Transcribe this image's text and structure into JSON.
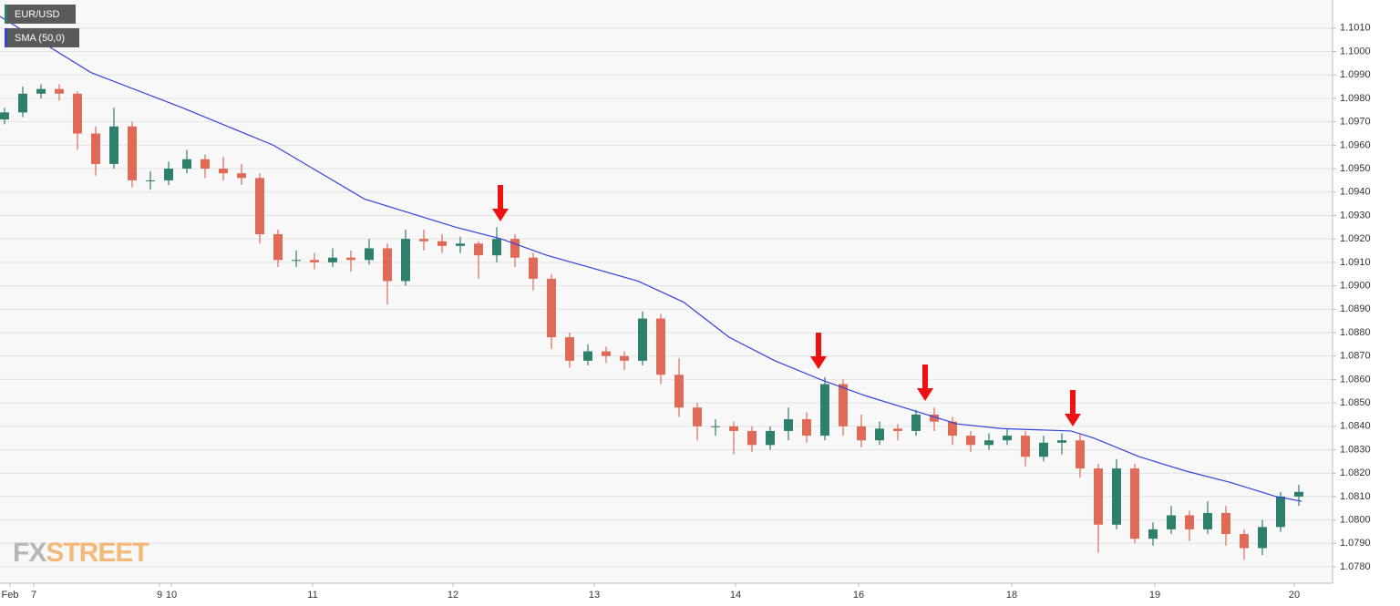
{
  "chart_data": {
    "type": "candlestick",
    "watermark": [
      "FX",
      "STREET"
    ],
    "grid": true,
    "xlim": [
      -0.25,
      72.85
    ],
    "ylim": [
      1.0773,
      1.1022
    ],
    "xticks": [
      {
        "value": 0.3,
        "label": "Feb"
      },
      {
        "value": 1.6,
        "label": "7"
      },
      {
        "value": 8.5,
        "label": "9"
      },
      {
        "value": 9.15,
        "label": "10"
      },
      {
        "value": 16.9,
        "label": "11"
      },
      {
        "value": 24.6,
        "label": "12"
      },
      {
        "value": 32.35,
        "label": "13"
      },
      {
        "value": 40.1,
        "label": "14"
      },
      {
        "value": 46.85,
        "label": "16"
      },
      {
        "value": 55.25,
        "label": "18"
      },
      {
        "value": 63.1,
        "label": "19"
      },
      {
        "value": 70.75,
        "label": "20"
      }
    ],
    "yticks": [
      {
        "value": 1.078,
        "label": "1.0780"
      },
      {
        "value": 1.079,
        "label": "1.0790"
      },
      {
        "value": 1.08,
        "label": "1.0800"
      },
      {
        "value": 1.081,
        "label": "1.0810"
      },
      {
        "value": 1.082,
        "label": "1.0820"
      },
      {
        "value": 1.083,
        "label": "1.0830"
      },
      {
        "value": 1.084,
        "label": "1.0840"
      },
      {
        "value": 1.085,
        "label": "1.0850"
      },
      {
        "value": 1.086,
        "label": "1.0860"
      },
      {
        "value": 1.087,
        "label": "1.0870"
      },
      {
        "value": 1.088,
        "label": "1.0880"
      },
      {
        "value": 1.089,
        "label": "1.0890"
      },
      {
        "value": 1.09,
        "label": "1.0900"
      },
      {
        "value": 1.091,
        "label": "1.0910"
      },
      {
        "value": 1.092,
        "label": "1.0920"
      },
      {
        "value": 1.093,
        "label": "1.0930"
      },
      {
        "value": 1.094,
        "label": "1.0940"
      },
      {
        "value": 1.095,
        "label": "1.0950"
      },
      {
        "value": 1.096,
        "label": "1.0960"
      },
      {
        "value": 1.097,
        "label": "1.0970"
      },
      {
        "value": 1.098,
        "label": "1.0980"
      },
      {
        "value": 1.099,
        "label": "1.0990"
      },
      {
        "value": 1.1,
        "label": "1.1000"
      },
      {
        "value": 1.101,
        "label": "1.1010"
      }
    ],
    "series": [
      {
        "name": "EUR/USD",
        "type": "candlestick",
        "up_color": "#2e7f6c",
        "down_color": "#de6b58",
        "x": [
          0,
          1,
          2,
          3,
          4,
          5,
          6,
          7,
          8,
          9,
          10,
          11,
          12,
          13,
          14,
          15,
          16,
          17,
          18,
          19,
          20,
          21,
          22,
          23,
          24,
          25,
          26,
          27,
          28,
          29,
          30,
          31,
          32,
          33,
          34,
          35,
          36,
          37,
          38,
          39,
          40,
          41,
          42,
          43,
          44,
          45,
          46,
          47,
          48,
          49,
          50,
          51,
          52,
          53,
          54,
          55,
          56,
          57,
          58,
          59,
          60,
          61,
          62,
          63,
          64,
          65,
          66,
          67,
          68,
          69,
          70,
          71
        ],
        "open": [
          1.0971,
          1.0974,
          1.0982,
          1.0984,
          1.0982,
          1.0965,
          1.0952,
          1.0968,
          1.0945,
          1.0945,
          1.095,
          1.0954,
          1.095,
          1.0948,
          1.0946,
          1.0922,
          1.0911,
          1.0911,
          1.091,
          1.0912,
          1.0911,
          1.0916,
          1.0902,
          1.092,
          1.0919,
          1.0917,
          1.0918,
          1.0913,
          1.092,
          1.0912,
          1.0903,
          1.0878,
          1.0868,
          1.0872,
          1.087,
          1.0868,
          1.0886,
          1.0862,
          1.0848,
          1.084,
          1.084,
          1.0838,
          1.0832,
          1.0838,
          1.0843,
          1.0836,
          1.0858,
          1.084,
          1.0834,
          1.0839,
          1.0838,
          1.0845,
          1.0842,
          1.0836,
          1.0832,
          1.0834,
          1.0836,
          1.0827,
          1.0833,
          1.0834,
          1.0822,
          1.0798,
          1.0822,
          1.0792,
          1.0796,
          1.0802,
          1.0796,
          1.0803,
          1.0794,
          1.0788,
          1.0797,
          1.081
        ],
        "high": [
          1.0976,
          1.0985,
          1.0986,
          1.0986,
          1.0983,
          1.0968,
          1.0976,
          1.097,
          1.0949,
          1.0953,
          1.0958,
          1.0956,
          1.0955,
          1.0952,
          1.0948,
          1.0924,
          1.0915,
          1.0914,
          1.0916,
          1.0915,
          1.092,
          1.0918,
          1.0924,
          1.0924,
          1.0922,
          1.0921,
          1.0919,
          1.0925,
          1.0922,
          1.0914,
          1.0905,
          1.088,
          1.0875,
          1.0874,
          1.0872,
          1.0889,
          1.0888,
          1.0869,
          1.085,
          1.0843,
          1.0842,
          1.084,
          1.084,
          1.0848,
          1.0846,
          1.0861,
          1.086,
          1.0845,
          1.0842,
          1.0841,
          1.0847,
          1.0848,
          1.0844,
          1.0838,
          1.0837,
          1.0839,
          1.0838,
          1.0836,
          1.0837,
          1.0837,
          1.0824,
          1.0826,
          1.0824,
          1.0799,
          1.0806,
          1.0804,
          1.0808,
          1.0806,
          1.0796,
          1.08,
          1.0812,
          1.0815
        ],
        "low": [
          1.0969,
          1.0972,
          1.098,
          1.0979,
          1.0958,
          1.0947,
          1.095,
          1.0942,
          1.0941,
          1.0943,
          1.0948,
          1.0946,
          1.0945,
          1.0943,
          1.0918,
          1.0908,
          1.0908,
          1.0907,
          1.0908,
          1.0906,
          1.0909,
          1.0892,
          1.09,
          1.0915,
          1.0914,
          1.0914,
          1.0903,
          1.091,
          1.0908,
          1.0898,
          1.0873,
          1.0865,
          1.0866,
          1.0867,
          1.0864,
          1.0866,
          1.0858,
          1.0844,
          1.0834,
          1.0836,
          1.0828,
          1.0829,
          1.083,
          1.0834,
          1.0833,
          1.0834,
          1.0836,
          1.0831,
          1.0832,
          1.0834,
          1.0836,
          1.0838,
          1.0832,
          1.0829,
          1.083,
          1.0832,
          1.0823,
          1.0825,
          1.0828,
          1.0818,
          1.0786,
          1.0796,
          1.079,
          1.0789,
          1.0794,
          1.0791,
          1.0794,
          1.0789,
          1.0783,
          1.0785,
          1.0795,
          1.0806
        ],
        "close": [
          1.0974,
          1.0982,
          1.0984,
          1.0982,
          1.0965,
          1.0952,
          1.0968,
          1.0945,
          1.0945,
          1.095,
          1.0954,
          1.095,
          1.0948,
          1.0946,
          1.0922,
          1.0911,
          1.0911,
          1.091,
          1.0912,
          1.0911,
          1.0916,
          1.0902,
          1.092,
          1.0919,
          1.0917,
          1.0918,
          1.0913,
          1.092,
          1.0912,
          1.0903,
          1.0878,
          1.0868,
          1.0872,
          1.087,
          1.0868,
          1.0886,
          1.0862,
          1.0848,
          1.084,
          1.084,
          1.0838,
          1.0832,
          1.0838,
          1.0843,
          1.0836,
          1.0858,
          1.084,
          1.0834,
          1.0839,
          1.0838,
          1.0845,
          1.0842,
          1.0836,
          1.0832,
          1.0834,
          1.0836,
          1.0827,
          1.0833,
          1.0834,
          1.0822,
          1.0798,
          1.0822,
          1.0792,
          1.0796,
          1.0802,
          1.0796,
          1.0803,
          1.0794,
          1.0788,
          1.0797,
          1.081,
          1.0812
        ]
      },
      {
        "name": "SMA (50,0)",
        "type": "line",
        "color": "#3243d8",
        "x": [
          -0.25,
          4.75,
          9.75,
          14.75,
          19.75,
          24.75,
          27.25,
          29.75,
          34.75,
          37.25,
          39.75,
          42.25,
          44.75,
          47.25,
          49.75,
          52.25,
          54.75,
          58.5,
          59.75,
          62.25,
          64.75,
          67.25,
          69.75,
          71.15
        ],
        "values": [
          1.1015,
          1.0991,
          1.0976,
          1.096,
          1.0937,
          1.0925,
          1.092,
          1.0913,
          1.0902,
          1.0893,
          1.0878,
          1.0868,
          1.086,
          1.0853,
          1.0847,
          1.0841,
          1.0839,
          1.0838,
          1.0835,
          1.0827,
          1.0821,
          1.0816,
          1.081,
          1.0808
        ]
      }
    ]
  }
}
